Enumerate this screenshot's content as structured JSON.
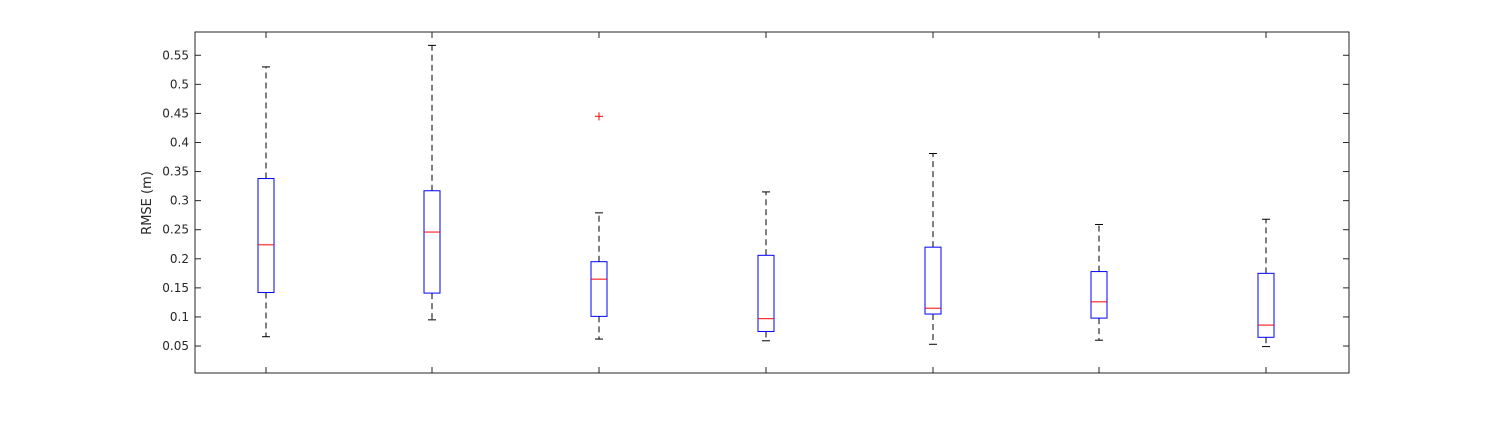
{
  "chart_data": {
    "type": "boxplot",
    "title": "",
    "xlabel": "",
    "ylabel": "RMSE (m)",
    "ylim": [
      0.0036,
      0.59
    ],
    "yticks": [
      0.05,
      0.1,
      0.15,
      0.2,
      0.25,
      0.3,
      0.35,
      0.4,
      0.45,
      0.5,
      0.55
    ],
    "ytick_labels": [
      "0.05",
      "0.1",
      "0.15",
      "0.2",
      "0.25",
      "0.3",
      "0.35",
      "0.4",
      "0.45",
      "0.5",
      "0.55"
    ],
    "xtick_labels": [
      "",
      "",
      "",
      "",
      "",
      "",
      ""
    ],
    "grid": false,
    "colors": {
      "box": "#0000ff",
      "median": "#ff0000",
      "whisker": "#000000",
      "outlier": "#ff0000",
      "axis": "#262626"
    },
    "boxes": [
      {
        "whisker_low": 0.066,
        "q1": 0.142,
        "median": 0.224,
        "q3": 0.338,
        "whisker_high": 0.53,
        "outliers": []
      },
      {
        "whisker_low": 0.095,
        "q1": 0.141,
        "median": 0.246,
        "q3": 0.317,
        "whisker_high": 0.567,
        "outliers": []
      },
      {
        "whisker_low": 0.062,
        "q1": 0.101,
        "median": 0.165,
        "q3": 0.195,
        "whisker_high": 0.279,
        "outliers": [
          0.445
        ]
      },
      {
        "whisker_low": 0.059,
        "q1": 0.075,
        "median": 0.097,
        "q3": 0.206,
        "whisker_high": 0.315,
        "outliers": []
      },
      {
        "whisker_low": 0.053,
        "q1": 0.105,
        "median": 0.115,
        "q3": 0.22,
        "whisker_high": 0.381,
        "outliers": []
      },
      {
        "whisker_low": 0.06,
        "q1": 0.098,
        "median": 0.126,
        "q3": 0.178,
        "whisker_high": 0.259,
        "outliers": []
      },
      {
        "whisker_low": 0.049,
        "q1": 0.065,
        "median": 0.086,
        "q3": 0.175,
        "whisker_high": 0.268,
        "outliers": []
      }
    ]
  }
}
